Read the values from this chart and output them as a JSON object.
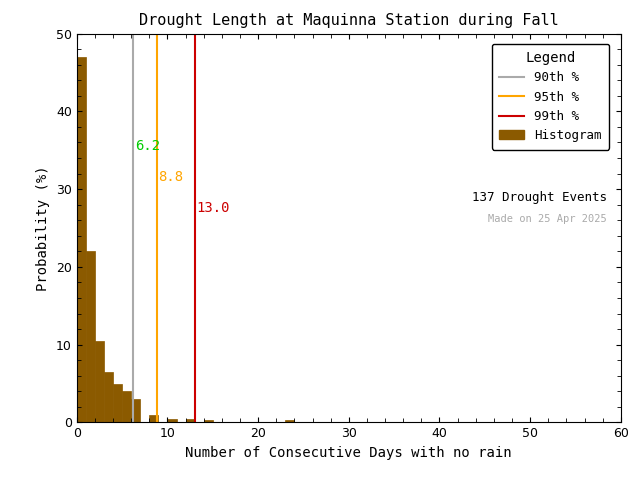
{
  "title": "Drought Length at Maquinna Station during Fall",
  "xlabel": "Number of Consecutive Days with no rain",
  "ylabel": "Probability (%)",
  "xlim": [
    0,
    60
  ],
  "ylim": [
    0,
    50
  ],
  "bar_color": "#8B5A00",
  "bar_edge_color": "#8B5A00",
  "background_color": "#ffffff",
  "percentile_90": 6.2,
  "percentile_95": 8.8,
  "percentile_99": 13.0,
  "p90_line_color": "#aaaaaa",
  "p95_line_color": "#FFA500",
  "p99_line_color": "#CC0000",
  "p90_text_color": "#00CC00",
  "p95_text_color": "#FFA500",
  "p99_text_color": "#CC0000",
  "n_events": 137,
  "made_on": "Made on 25 Apr 2025",
  "legend_title": "Legend",
  "bin_edges": [
    0,
    1,
    2,
    3,
    4,
    5,
    6,
    7,
    8,
    9,
    10,
    11,
    12,
    13,
    14,
    15,
    16,
    17,
    18,
    19,
    20,
    21,
    22,
    23,
    24,
    25,
    26,
    27,
    28,
    29,
    30,
    31,
    32,
    33,
    34,
    35,
    36,
    37,
    38,
    39,
    40,
    41,
    42,
    43,
    44,
    45,
    46,
    47,
    48,
    49,
    50,
    51,
    52,
    53,
    54,
    55,
    56,
    57,
    58,
    59,
    60
  ],
  "bin_probs": [
    47.0,
    22.0,
    10.5,
    6.5,
    5.0,
    4.0,
    3.0,
    0.0,
    1.0,
    0.0,
    0.5,
    0.0,
    0.5,
    0.0,
    0.3,
    0.0,
    0.0,
    0.0,
    0.0,
    0.0,
    0.0,
    0.0,
    0.0,
    0.3,
    0.0,
    0.0,
    0.0,
    0.0,
    0.0,
    0.0,
    0.0,
    0.0,
    0.0,
    0.0,
    0.0,
    0.0,
    0.0,
    0.0,
    0.0,
    0.0,
    0.0,
    0.0,
    0.0,
    0.0,
    0.0,
    0.0,
    0.0,
    0.0,
    0.0,
    0.0,
    0.0,
    0.0,
    0.0,
    0.0,
    0.0,
    0.0,
    0.0,
    0.0,
    0.0,
    0.0
  ]
}
